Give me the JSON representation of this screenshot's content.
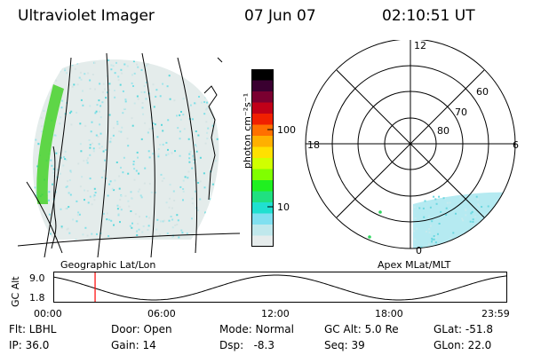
{
  "header": {
    "title": "Ultraviolet Imager",
    "date": "07 Jun 07",
    "time": "02:10:51 UT"
  },
  "geo_panel": {
    "label": "Geographic Lat/Lon"
  },
  "apex_panel": {
    "label": "Apex MLat/MLT",
    "mlt_labels": [
      "12",
      "18",
      "6",
      "0"
    ],
    "lat_labels": [
      "60",
      "70",
      "80"
    ]
  },
  "colorbar": {
    "unit_label": "photon cm⁻²s⁻¹",
    "ticks": [
      "100",
      "10"
    ],
    "colors": [
      "#000000",
      "#3a0030",
      "#7a0030",
      "#c00018",
      "#f02000",
      "#ff7000",
      "#ffb000",
      "#ffe000",
      "#d0ff00",
      "#80ff00",
      "#20f020",
      "#20e080",
      "#20e0d0",
      "#80e0f0",
      "#c0e8ec",
      "#e6ecec"
    ]
  },
  "timeline": {
    "axis_label": "GC Alt",
    "y_ticks": [
      "9.0",
      "1.8"
    ],
    "x_ticks": [
      "00:00",
      "06:00",
      "12:00",
      "18:00",
      "23:59"
    ],
    "marker_time": "02:10",
    "marker_color": "#ff0000"
  },
  "info": {
    "row1": {
      "flt": "Flt: LBHL",
      "door": "Door: Open",
      "mode": "Mode: Normal",
      "gcalt": "GC Alt: 5.0 Re",
      "glat": "GLat: -51.8"
    },
    "row2": {
      "ip": "IP: 36.0",
      "gain": "Gain: 14",
      "dsp": "Dsp:   -8.3",
      "seq": "Seq: 39",
      "glon": "GLon: 22.0"
    }
  }
}
